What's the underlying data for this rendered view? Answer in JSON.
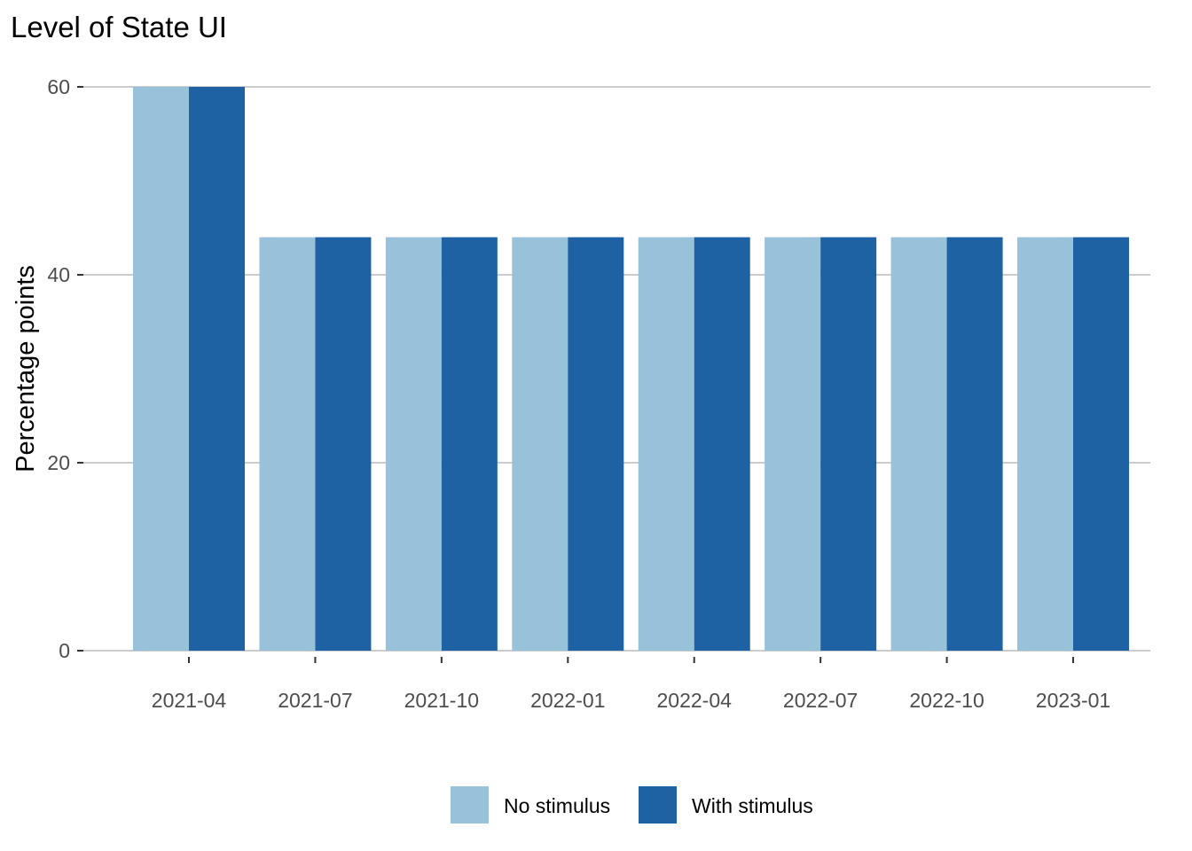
{
  "chart_data": {
    "type": "bar",
    "title": "Level of State UI",
    "xlabel": "",
    "ylabel": "Percentage points",
    "categories": [
      "2021-04",
      "2021-07",
      "2021-10",
      "2022-01",
      "2022-04",
      "2022-07",
      "2022-10",
      "2023-01"
    ],
    "series": [
      {
        "name": "No stimulus",
        "color": "#97c2da",
        "values": [
          60,
          44,
          44,
          44,
          44,
          44,
          44,
          44
        ]
      },
      {
        "name": "With stimulus",
        "color": "#1e62a4",
        "values": [
          60,
          44,
          44,
          44,
          44,
          44,
          44,
          44
        ]
      }
    ],
    "ylim": [
      0,
      60
    ],
    "yticks": [
      0,
      20,
      40,
      60
    ],
    "grid": true,
    "legend_position": "bottom"
  }
}
